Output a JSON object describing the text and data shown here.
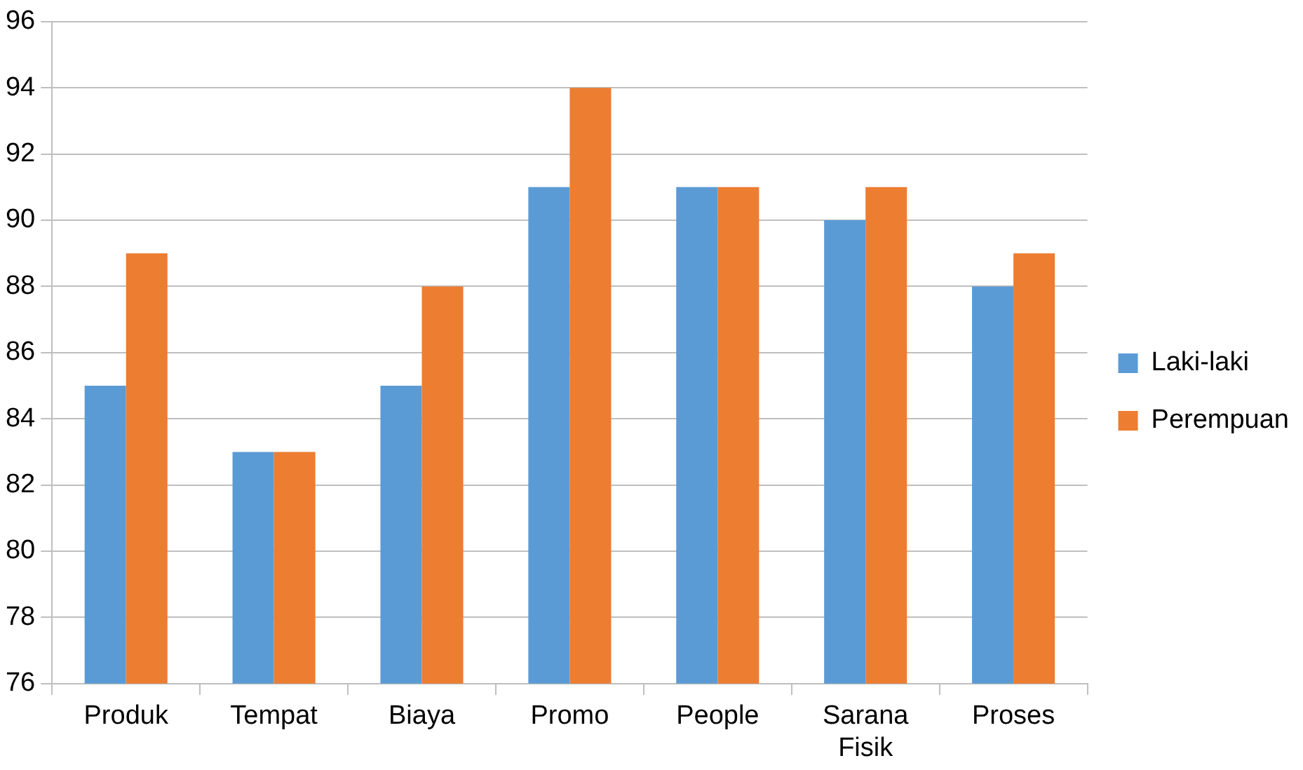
{
  "chart_data": {
    "type": "bar",
    "categories": [
      "Produk",
      "Tempat",
      "Biaya",
      "Promo",
      "People",
      "Sarana Fisik",
      "Proses"
    ],
    "series": [
      {
        "name": "Laki-laki",
        "color": "#5b9bd5",
        "values": [
          85,
          83,
          85,
          91,
          91,
          90,
          88
        ]
      },
      {
        "name": "Perempuan",
        "color": "#ed7d31",
        "values": [
          89,
          83,
          88,
          94,
          91,
          91,
          89
        ]
      }
    ],
    "ylim": [
      76,
      96
    ],
    "yticks": [
      76,
      78,
      80,
      82,
      84,
      86,
      88,
      90,
      92,
      94,
      96
    ],
    "grid": "y",
    "legend": "right"
  }
}
